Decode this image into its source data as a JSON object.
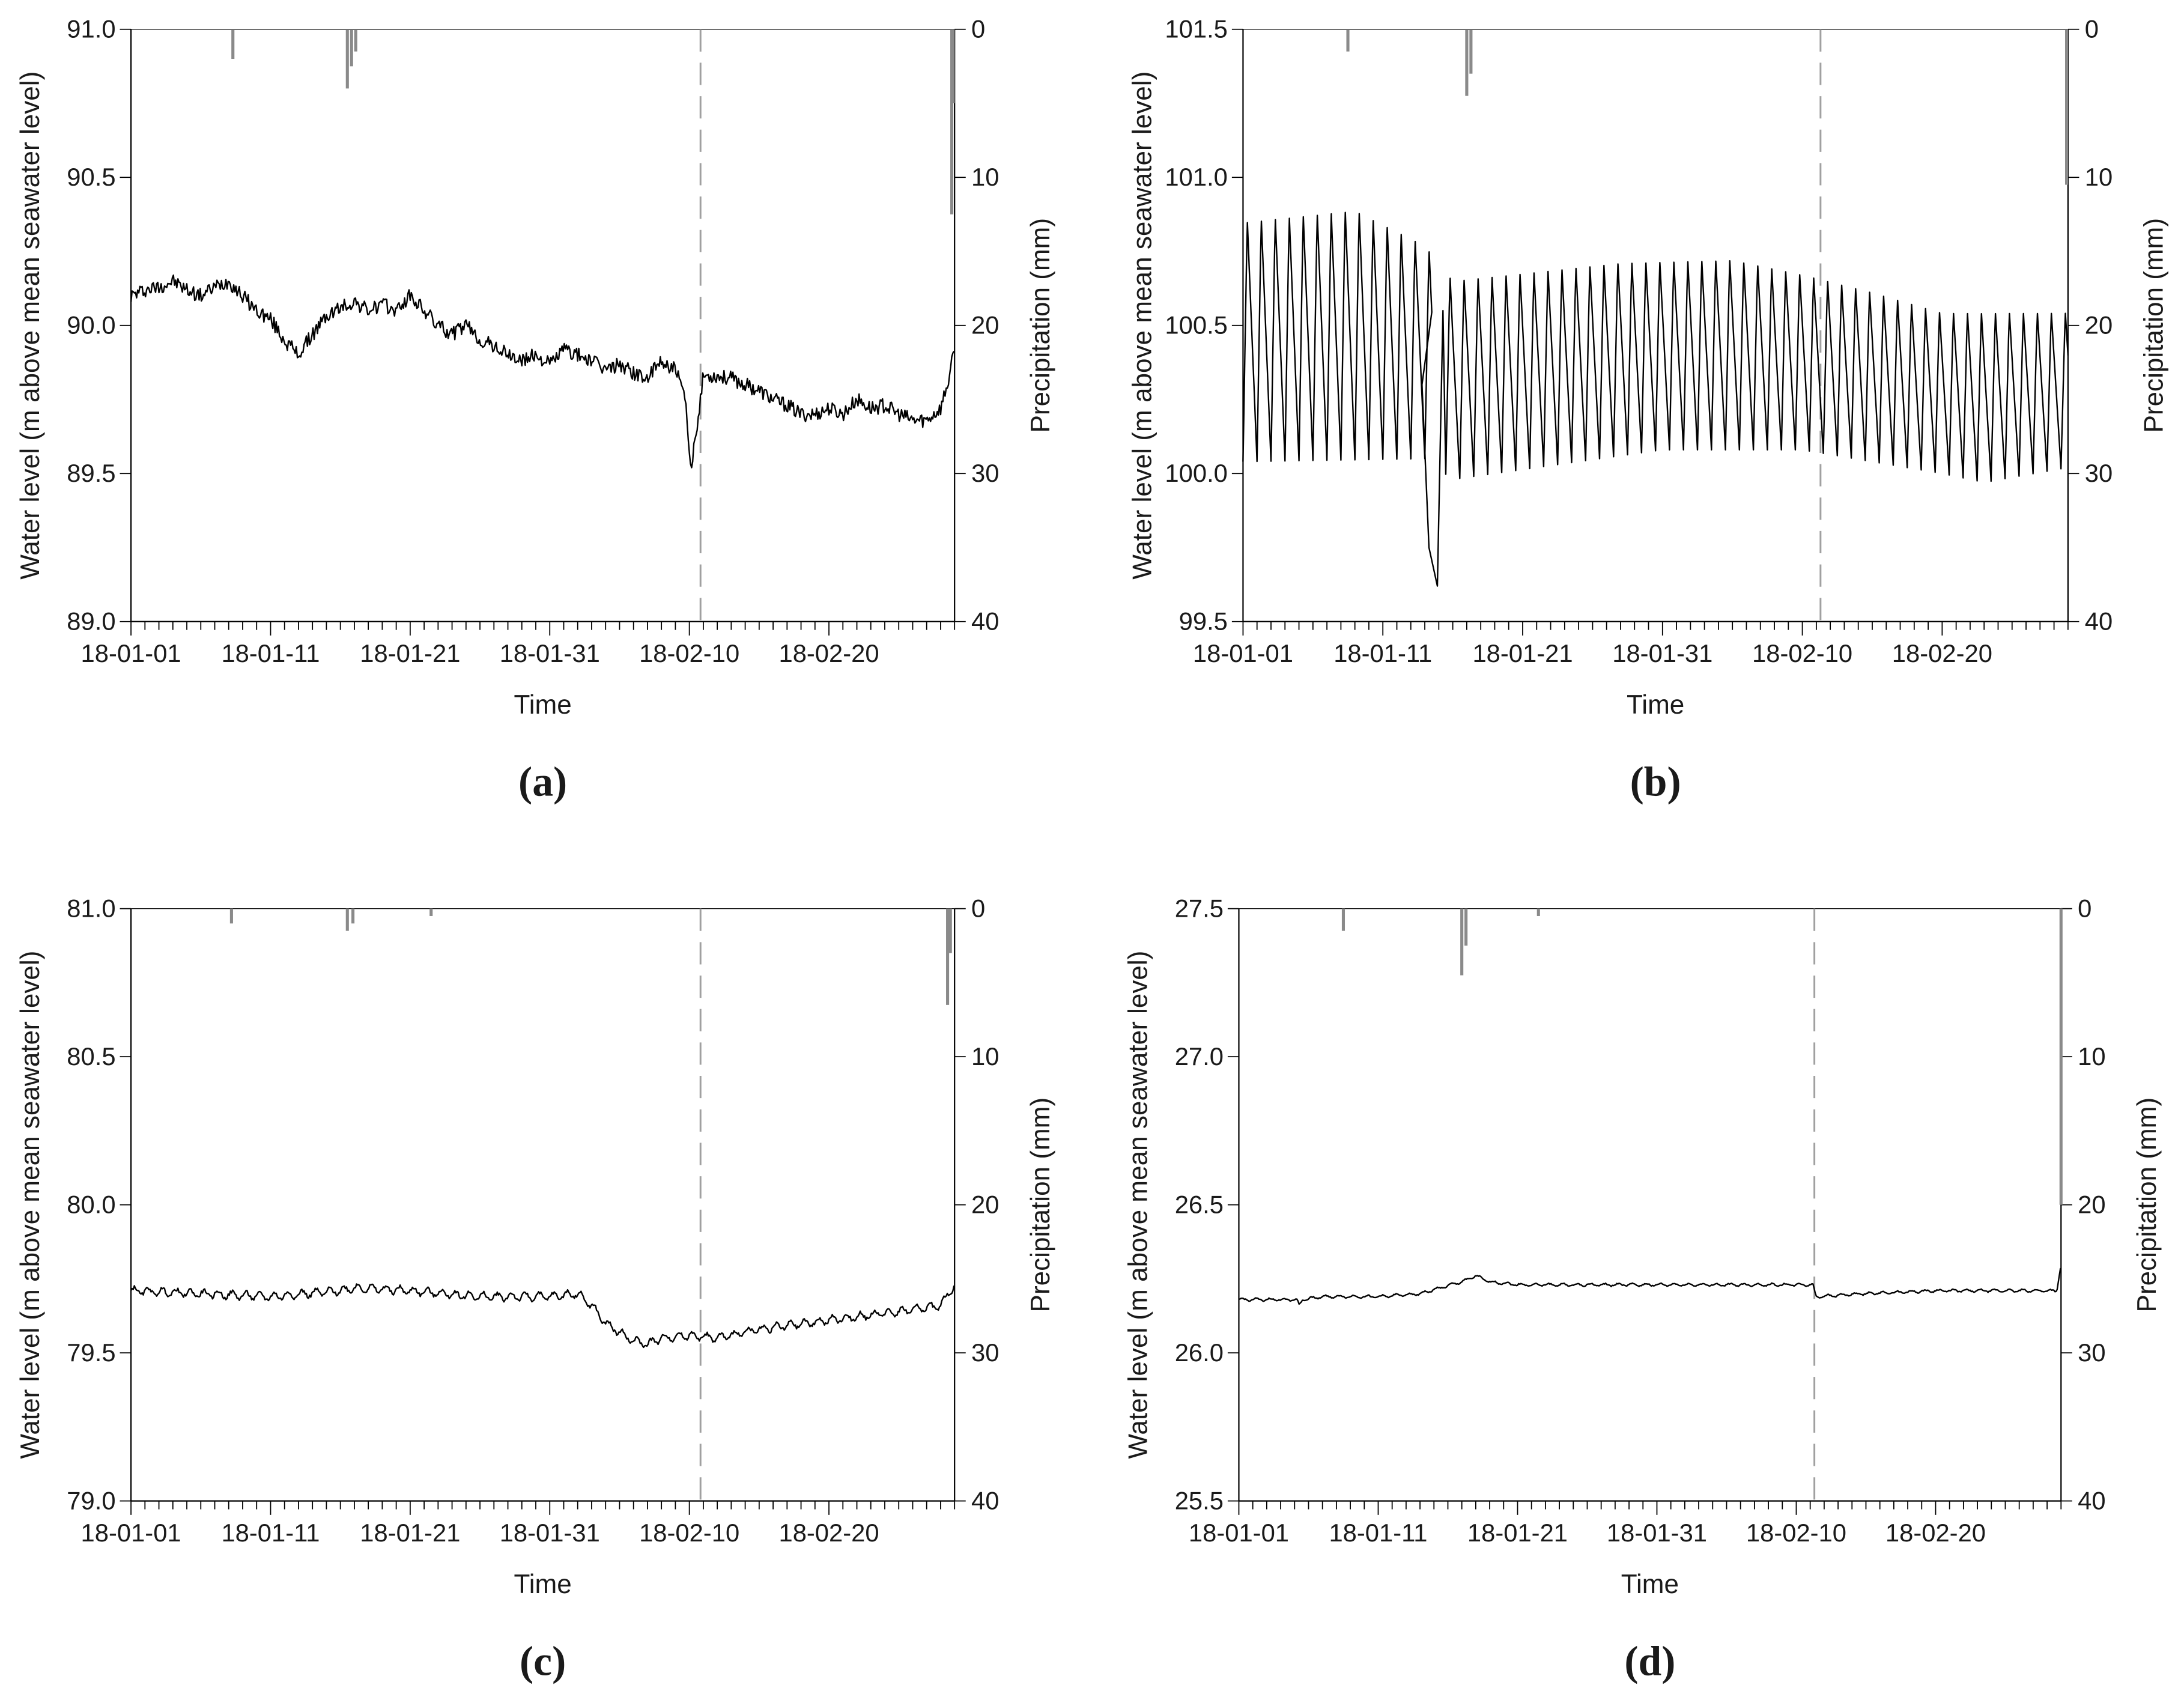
{
  "figure": {
    "colors": {
      "line": "#000000",
      "precip": "#8a8a8a",
      "marker": "#a0a0a0",
      "axis": "#000000",
      "text": "#1a1a1a"
    }
  },
  "chart_data": [
    {
      "panel_label": "(a)",
      "type": "line",
      "xlabel": "Time",
      "ylabel": "Water level (m above mean seawater level)",
      "y2label": "Precipitation (mm)",
      "x_range_days": [
        0,
        59
      ],
      "x_tick_labels": [
        "18-01-01",
        "18-01-11",
        "18-01-21",
        "18-01-31",
        "18-02-10",
        "18-02-20"
      ],
      "ylim": [
        89.0,
        91.0
      ],
      "y_ticks": [
        "89.0",
        "89.5",
        "90.0",
        "90.5",
        "91.0"
      ],
      "y2lim": [
        0,
        40
      ],
      "y2_ticks": [
        "0",
        "10",
        "20",
        "30",
        "40"
      ],
      "event_day": 40.8,
      "precipitation": [
        [
          7.3,
          2.0
        ],
        [
          15.5,
          4.0
        ],
        [
          15.8,
          2.5
        ],
        [
          16.1,
          1.5
        ],
        [
          58.8,
          12.5
        ],
        [
          58.9,
          5.0
        ]
      ],
      "series": [
        {
          "name": "Water level",
          "x": [
            0,
            1,
            2,
            3,
            4,
            5,
            6,
            7,
            8,
            9,
            10,
            11,
            12,
            13,
            14,
            15,
            16,
            17,
            18,
            19,
            20,
            21,
            22,
            23,
            24,
            25,
            26,
            27,
            28,
            29,
            30,
            31,
            32,
            33,
            34,
            35,
            36,
            37,
            38,
            39,
            39.7,
            40.1,
            40.5,
            41,
            42,
            43,
            44,
            45,
            46,
            47,
            48,
            49,
            50,
            51,
            52,
            53,
            54,
            55,
            56,
            57,
            58,
            58.6,
            59
          ],
          "values": [
            90.1,
            90.12,
            90.13,
            90.15,
            90.12,
            90.1,
            90.13,
            90.15,
            90.1,
            90.05,
            90.02,
            89.95,
            89.9,
            89.97,
            90.03,
            90.06,
            90.08,
            90.05,
            90.07,
            90.05,
            90.1,
            90.05,
            90.0,
            89.97,
            90.0,
            89.95,
            89.93,
            89.9,
            89.88,
            89.9,
            89.87,
            89.92,
            89.9,
            89.88,
            89.85,
            89.87,
            89.84,
            89.82,
            89.88,
            89.85,
            89.75,
            89.5,
            89.65,
            89.83,
            89.83,
            89.82,
            89.8,
            89.78,
            89.75,
            89.73,
            89.7,
            89.7,
            89.72,
            89.7,
            89.75,
            89.72,
            89.73,
            89.7,
            89.68,
            89.68,
            89.72,
            89.82,
            89.92
          ],
          "noise": 0.025
        }
      ]
    },
    {
      "panel_label": "(b)",
      "type": "line",
      "xlabel": "Time",
      "ylabel": "Water level (m above mean seawater level)",
      "y2label": "Precipitation (mm)",
      "x_range_days": [
        0,
        59
      ],
      "x_tick_labels": [
        "18-01-01",
        "18-01-11",
        "18-01-21",
        "18-01-31",
        "18-02-10",
        "18-02-20"
      ],
      "ylim": [
        99.5,
        101.5
      ],
      "y_ticks": [
        "99.5",
        "100.0",
        "100.5",
        "101.0",
        "101.5"
      ],
      "y2lim": [
        0,
        40
      ],
      "y2_ticks": [
        "0",
        "10",
        "20",
        "30",
        "40"
      ],
      "event_day": 41.3,
      "precipitation": [
        [
          7.5,
          1.5
        ],
        [
          16.0,
          4.5
        ],
        [
          16.3,
          3.0
        ],
        [
          58.9,
          10.5
        ]
      ],
      "series": [
        {
          "name": "Water level",
          "oscillation": {
            "period_days": 1.0,
            "segments": [
              [
                0,
                13.5,
                100.04,
                100.86
              ],
              [
                14.5,
                59,
                100.0,
                100.64
              ]
            ]
          },
          "drop": [
            [
              12.8,
              100.3
            ],
            [
              13.3,
              99.75
            ],
            [
              13.9,
              99.62
            ],
            [
              14.3,
              100.55
            ]
          ],
          "peaks_by_day": [
            [
              0,
              100.86
            ],
            [
              8,
              100.9
            ],
            [
              13,
              100.78
            ],
            [
              15,
              100.66
            ],
            [
              27,
              100.72
            ],
            [
              35,
              100.73
            ],
            [
              40,
              100.68
            ],
            [
              45,
              100.62
            ],
            [
              50,
              100.55
            ],
            [
              55,
              100.55
            ],
            [
              59,
              100.55
            ]
          ],
          "troughs_by_day": [
            [
              0,
              100.04
            ],
            [
              13,
              100.05
            ],
            [
              15,
              99.98
            ],
            [
              30,
              100.08
            ],
            [
              40,
              100.08
            ],
            [
              50,
              100.0
            ],
            [
              53,
              99.97
            ],
            [
              59,
              100.02
            ]
          ]
        }
      ]
    },
    {
      "panel_label": "(c)",
      "type": "line",
      "xlabel": "Time",
      "ylabel": "Water level (m above mean seawater level)",
      "y2label": "Precipitation (mm)",
      "x_range_days": [
        0,
        59
      ],
      "x_tick_labels": [
        "18-01-01",
        "18-01-11",
        "18-01-21",
        "18-01-31",
        "18-02-10",
        "18-02-20"
      ],
      "ylim": [
        79.0,
        81.0
      ],
      "y_ticks": [
        "79.0",
        "79.5",
        "80.0",
        "80.5",
        "81.0"
      ],
      "y2lim": [
        0,
        40
      ],
      "y2_ticks": [
        "0",
        "10",
        "20",
        "30",
        "40"
      ],
      "event_day": 40.8,
      "precipitation": [
        [
          7.2,
          1.0
        ],
        [
          15.5,
          1.5
        ],
        [
          15.9,
          1.0
        ],
        [
          21.5,
          0.5
        ],
        [
          58.5,
          6.5
        ],
        [
          58.7,
          3.0
        ]
      ],
      "series": [
        {
          "name": "Water level",
          "x": [
            0,
            5,
            10,
            15,
            16,
            20,
            25,
            30,
            32,
            33,
            34,
            35,
            36,
            37,
            38,
            40,
            42,
            45,
            50,
            55,
            58,
            59
          ],
          "values": [
            79.71,
            79.7,
            79.69,
            79.71,
            79.72,
            79.71,
            79.69,
            79.69,
            79.7,
            79.66,
            79.6,
            79.57,
            79.54,
            79.53,
            79.55,
            79.56,
            79.55,
            79.58,
            79.61,
            79.64,
            79.66,
            79.73
          ],
          "diurnal_amplitude": 0.012
        }
      ]
    },
    {
      "panel_label": "(d)",
      "type": "line",
      "xlabel": "Time",
      "ylabel": "Water level (m above mean seawater level)",
      "y2label": "Precipitation (mm)",
      "x_range_days": [
        0,
        59
      ],
      "x_tick_labels": [
        "18-01-01",
        "18-01-11",
        "18-01-21",
        "18-01-31",
        "18-02-10",
        "18-02-20"
      ],
      "ylim": [
        25.5,
        27.5
      ],
      "y_ticks": [
        "25.5",
        "26.0",
        "26.5",
        "27.0",
        "27.5"
      ],
      "y2lim": [
        0,
        40
      ],
      "y2_ticks": [
        "0",
        "10",
        "20",
        "30",
        "40"
      ],
      "event_day": 41.3,
      "precipitation": [
        [
          7.5,
          1.5
        ],
        [
          16.0,
          4.5
        ],
        [
          16.3,
          2.5
        ],
        [
          21.5,
          0.5
        ],
        [
          59.0,
          20.0
        ]
      ],
      "series": [
        {
          "name": "Water level",
          "x": [
            0,
            4.2,
            4.3,
            4.6,
            6,
            10,
            13,
            16,
            17,
            18,
            20,
            25,
            30,
            35,
            40,
            41.2,
            41.4,
            45,
            50,
            55,
            58.7,
            59
          ],
          "values": [
            26.18,
            26.18,
            26.16,
            26.18,
            26.19,
            26.19,
            26.2,
            26.24,
            26.26,
            26.24,
            26.23,
            26.23,
            26.23,
            26.23,
            26.23,
            26.23,
            26.19,
            26.2,
            26.21,
            26.21,
            26.21,
            26.3
          ],
          "diurnal_amplitude": 0.004
        }
      ]
    }
  ]
}
